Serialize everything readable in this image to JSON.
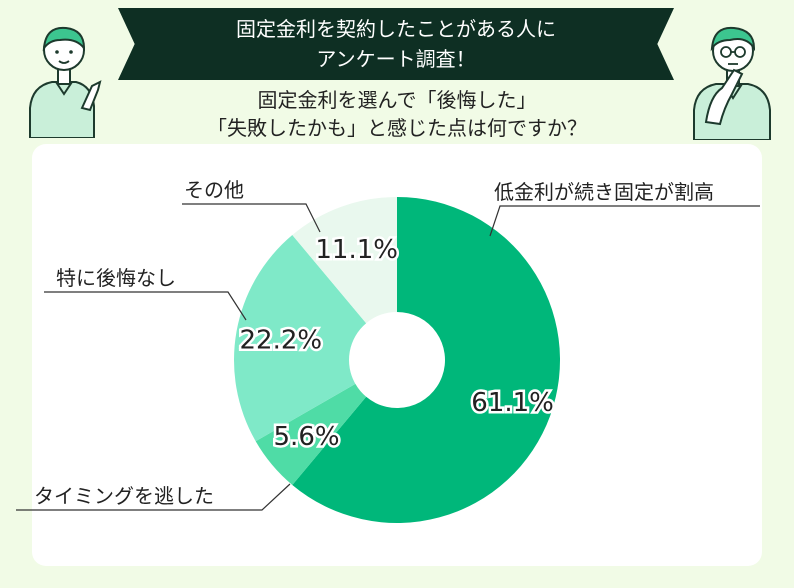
{
  "header": {
    "title_line1": "固定金利を契約したことがある人に",
    "title_line2": "アンケート調査！",
    "question_line1": "固定金利を選んで「後悔した」",
    "question_line2": "「失敗したかも」と感じた点は何ですか？"
  },
  "chart_data": {
    "type": "pie",
    "donut": true,
    "slices": [
      {
        "label": "低金利が続き固定が割高",
        "value": 61.1,
        "value_label": "61.1%",
        "color": "#00b77a"
      },
      {
        "label": "タイミングを逃した",
        "value": 5.6,
        "value_label": "5.6%",
        "color": "#4fdca6"
      },
      {
        "label": "特に後悔なし",
        "value": 22.2,
        "value_label": "22.2%",
        "color": "#7fe9c8"
      },
      {
        "label": "その他",
        "value": 11.1,
        "value_label": "11.1%",
        "color": "#e9f8ee"
      }
    ]
  },
  "colors": {
    "background": "#f1fbe6",
    "banner": "#0e2f23",
    "card": "#ffffff"
  }
}
